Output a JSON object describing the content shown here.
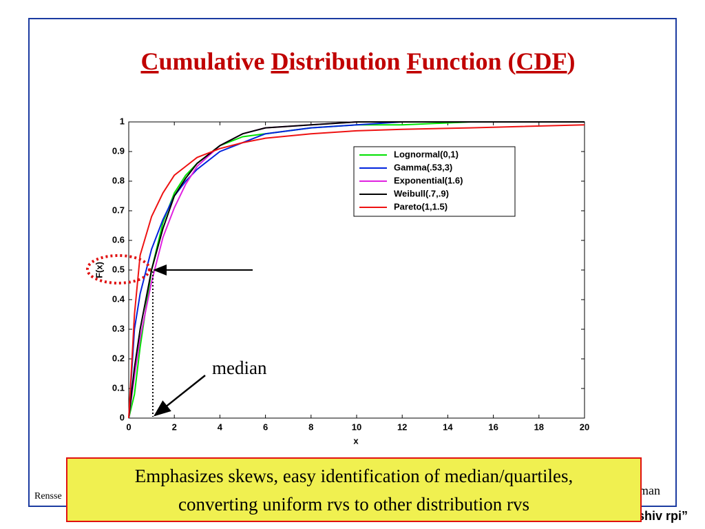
{
  "title_segments": [
    "C",
    "umulative ",
    "D",
    "istribution ",
    "F",
    "unction (",
    "CDF",
    ")"
  ],
  "annotation": "median",
  "callout": [
    "Emphasizes skews, easy identification of median/quartiles,",
    "converting uniform rvs to other distribution rvs"
  ],
  "footer_left": "Rensse",
  "footer_right": "man",
  "footer_tag": "shiv rpi”",
  "chart_data": {
    "type": "line",
    "xlabel": "x",
    "ylabel": "F(x)",
    "x": [
      0,
      0.25,
      0.5,
      1,
      1.5,
      2,
      2.5,
      3,
      4,
      5,
      6,
      8,
      10,
      12,
      15,
      20
    ],
    "series": [
      {
        "name": "Lognormal(0,1)",
        "color": "#00e000",
        "values": [
          0,
          0.08,
          0.24,
          0.5,
          0.66,
          0.76,
          0.82,
          0.86,
          0.92,
          0.95,
          0.96,
          0.98,
          0.99,
          0.99,
          1,
          1
        ]
      },
      {
        "name": "Gamma(.53,3)",
        "color": "#0022dd",
        "values": [
          0,
          0.3,
          0.42,
          0.57,
          0.67,
          0.75,
          0.8,
          0.84,
          0.9,
          0.93,
          0.96,
          0.98,
          0.99,
          1,
          1,
          1
        ]
      },
      {
        "name": "Exponential(1.6)",
        "color": "#e020e0",
        "values": [
          0,
          0.14,
          0.27,
          0.46,
          0.61,
          0.71,
          0.79,
          0.85,
          0.92,
          0.96,
          0.98,
          0.99,
          1,
          1,
          1,
          1
        ]
      },
      {
        "name": "Weibull(.7,.9)",
        "color": "#000000",
        "values": [
          0,
          0.17,
          0.3,
          0.5,
          0.64,
          0.75,
          0.81,
          0.86,
          0.92,
          0.96,
          0.98,
          0.99,
          1,
          1,
          1,
          1
        ]
      },
      {
        "name": "Pareto(1,1.5)",
        "color": "#ee1111",
        "values": [
          0,
          0.35,
          0.55,
          0.68,
          0.76,
          0.82,
          0.85,
          0.88,
          0.91,
          0.93,
          0.945,
          0.96,
          0.97,
          0.975,
          0.98,
          0.99
        ]
      }
    ],
    "xlim": [
      0,
      20
    ],
    "xticks": [
      0,
      2,
      4,
      6,
      8,
      10,
      12,
      14,
      16,
      18,
      20
    ],
    "ylim": [
      0,
      1
    ],
    "yticks": [
      0,
      0.1,
      0.2,
      0.3,
      0.4,
      0.5,
      0.6,
      0.7,
      0.8,
      0.9,
      1
    ],
    "legend": "upper right"
  }
}
